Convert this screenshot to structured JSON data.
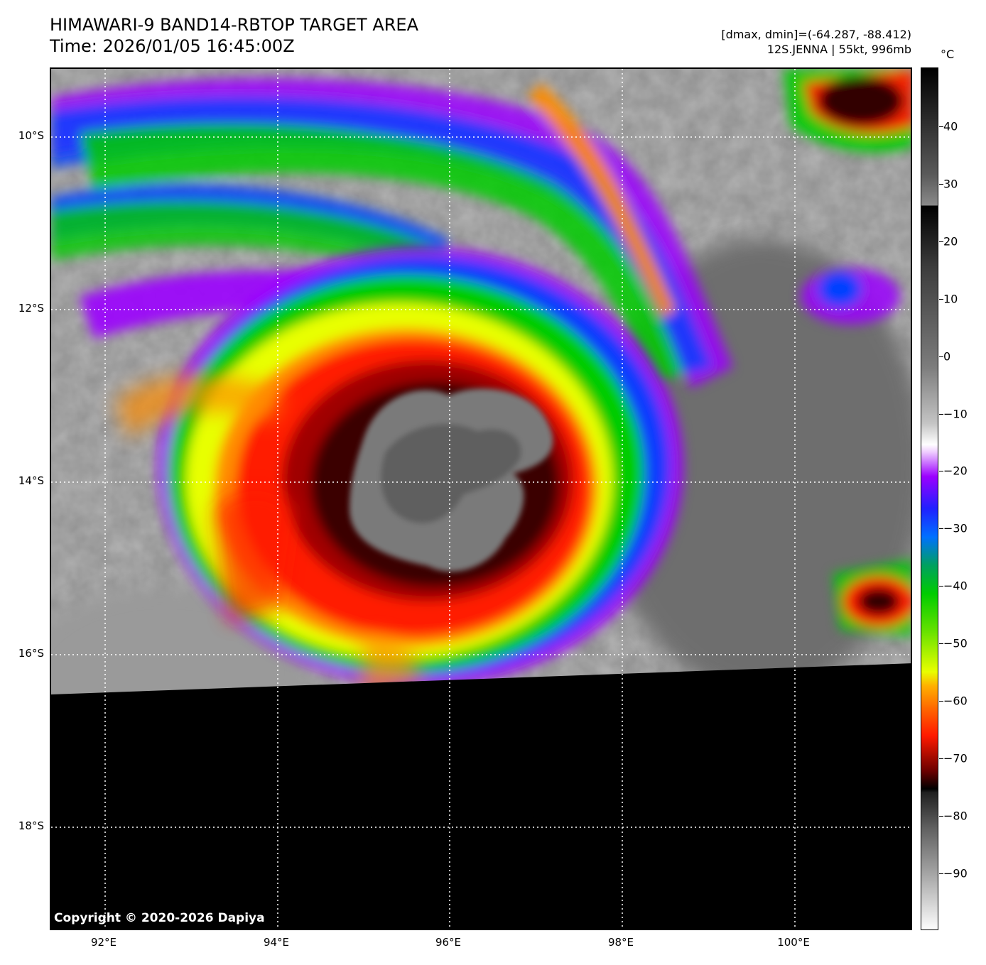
{
  "header": {
    "title_line1": "HIMAWARI-9 BAND14-RBTOP TARGET AREA",
    "title_line2": "Time: 2026/01/05 16:45:00Z",
    "meta_line1": "[dmax, dmin]=(-64.287, -88.412)",
    "meta_line2": "12S.JENNA | 55kt, 996mb"
  },
  "map": {
    "lat_labels": [
      "10°S",
      "12°S",
      "14°S",
      "16°S",
      "18°S"
    ],
    "lon_labels": [
      "92°E",
      "94°E",
      "96°E",
      "98°E",
      "100°E"
    ],
    "copyright": "Copyright © 2020-2026 Dapiya",
    "no_data_color": "#000000",
    "grid_style": "white dotted"
  },
  "colorbar": {
    "unit": "°C",
    "tick_labels": [
      "40",
      "30",
      "20",
      "10",
      "0",
      "−10",
      "−20",
      "−30",
      "−40",
      "−50",
      "−60",
      "−70",
      "−80",
      "−90"
    ],
    "colors": {
      "warm_gray_top": "#6a6a6a",
      "purple": "#9b00ff",
      "blue": "#0040ff",
      "green": "#00cc00",
      "yellow": "#e8ff00",
      "orange": "#ff8c00",
      "red": "#ff1a00",
      "dark_red": "#200000",
      "cold_gray": "#9a9a9a"
    }
  }
}
